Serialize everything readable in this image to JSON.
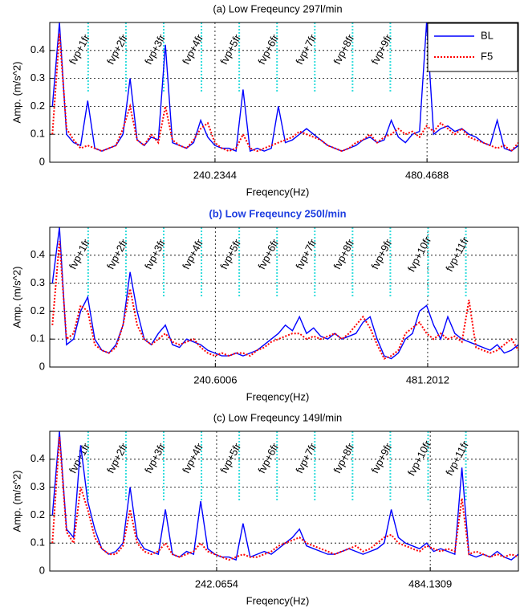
{
  "chart_data": [
    {
      "type": "line",
      "title": "(a) Low Freqeuncy 297l/min",
      "title_color": "#000000",
      "title_bold": false,
      "xlabel": "Freqency(Hz)",
      "ylabel": "Amp. (m/s^2)",
      "xlim": [
        53,
        584
      ],
      "ylim": [
        0,
        0.5
      ],
      "xticks": [
        240.2344,
        480.4688
      ],
      "yticks": [
        0,
        0.1,
        0.2,
        0.3,
        0.4
      ],
      "grid": true,
      "legend": "upper right",
      "annotation_color": "#33dddd",
      "annotations": [
        {
          "text": "fvp+1fr",
          "x": 96.5
        },
        {
          "text": "fvp+2fr",
          "x": 139.3
        },
        {
          "text": "fvp+3fr",
          "x": 182.1
        },
        {
          "text": "fvp+4fr",
          "x": 224.9
        },
        {
          "text": "fvp+5fr",
          "x": 267.7
        },
        {
          "text": "fvp+6fr",
          "x": 310.5
        },
        {
          "text": "fvp+7fr",
          "x": 353.3
        },
        {
          "text": "fvp+8fr",
          "x": 396.1
        },
        {
          "text": "fvp+9fr",
          "x": 438.9
        }
      ],
      "x": [
        56,
        64,
        72,
        80,
        88,
        96,
        104,
        112,
        120,
        128,
        136,
        144,
        152,
        160,
        168,
        176,
        184,
        192,
        200,
        208,
        216,
        224,
        232,
        240,
        248,
        256,
        264,
        272,
        280,
        288,
        296,
        304,
        312,
        320,
        328,
        336,
        344,
        352,
        360,
        368,
        376,
        384,
        392,
        400,
        408,
        416,
        424,
        432,
        440,
        448,
        456,
        464,
        472,
        480,
        488,
        496,
        504,
        512,
        520,
        528,
        536,
        544,
        552,
        560,
        568,
        576,
        584
      ],
      "series": [
        {
          "name": "BL",
          "color": "#0000ff",
          "dash": "solid",
          "values": [
            0.2,
            0.5,
            0.1,
            0.07,
            0.06,
            0.22,
            0.05,
            0.04,
            0.05,
            0.06,
            0.1,
            0.3,
            0.08,
            0.06,
            0.09,
            0.08,
            0.42,
            0.07,
            0.06,
            0.05,
            0.07,
            0.15,
            0.09,
            0.06,
            0.05,
            0.05,
            0.04,
            0.26,
            0.04,
            0.05,
            0.04,
            0.05,
            0.2,
            0.07,
            0.08,
            0.1,
            0.12,
            0.1,
            0.08,
            0.06,
            0.05,
            0.04,
            0.05,
            0.06,
            0.08,
            0.09,
            0.07,
            0.08,
            0.15,
            0.09,
            0.07,
            0.1,
            0.11,
            0.5,
            0.1,
            0.12,
            0.13,
            0.11,
            0.12,
            0.1,
            0.09,
            0.07,
            0.06,
            0.15,
            0.05,
            0.04,
            0.06
          ]
        },
        {
          "name": "F5",
          "color": "#ff0000",
          "dash": "dotted",
          "values": [
            0.1,
            0.46,
            0.12,
            0.08,
            0.05,
            0.06,
            0.05,
            0.04,
            0.05,
            0.06,
            0.12,
            0.2,
            0.08,
            0.06,
            0.1,
            0.07,
            0.2,
            0.08,
            0.06,
            0.05,
            0.08,
            0.12,
            0.14,
            0.07,
            0.05,
            0.04,
            0.05,
            0.1,
            0.05,
            0.04,
            0.05,
            0.06,
            0.07,
            0.08,
            0.09,
            0.11,
            0.1,
            0.09,
            0.08,
            0.06,
            0.05,
            0.04,
            0.05,
            0.07,
            0.08,
            0.1,
            0.07,
            0.09,
            0.1,
            0.12,
            0.1,
            0.11,
            0.09,
            0.13,
            0.11,
            0.14,
            0.12,
            0.1,
            0.12,
            0.09,
            0.08,
            0.07,
            0.06,
            0.05,
            0.06,
            0.04,
            0.07
          ]
        }
      ]
    },
    {
      "type": "line",
      "title": "(b) Low Freqeuncy 250l/min",
      "title_color": "#1f3fe0",
      "title_bold": true,
      "xlabel": "Freqency(Hz)",
      "ylabel": "Amp. (m/s^2)",
      "xlim": [
        53,
        584
      ],
      "ylim": [
        0,
        0.5
      ],
      "xticks": [
        240.6006,
        481.2012
      ],
      "yticks": [
        0,
        0.1,
        0.2,
        0.3,
        0.4
      ],
      "grid": true,
      "annotation_color": "#33dddd",
      "annotations": [
        {
          "text": "fvp+1fr",
          "x": 96.5
        },
        {
          "text": "fvp+2fr",
          "x": 139.3
        },
        {
          "text": "fvp+3fr",
          "x": 182.1
        },
        {
          "text": "fvp+4fr",
          "x": 224.9
        },
        {
          "text": "fvp+5fr",
          "x": 267.7
        },
        {
          "text": "fvp+6fr",
          "x": 310.5
        },
        {
          "text": "fvp+7fr",
          "x": 353.3
        },
        {
          "text": "fvp+8fr",
          "x": 396.1
        },
        {
          "text": "fvp+9fr",
          "x": 438.9
        },
        {
          "text": "fvp+10fr",
          "x": 481.7
        },
        {
          "text": "fvp+11fr",
          "x": 524.5
        }
      ],
      "x": [
        56,
        64,
        72,
        80,
        88,
        96,
        104,
        112,
        120,
        128,
        136,
        144,
        152,
        160,
        168,
        176,
        184,
        192,
        200,
        208,
        216,
        224,
        232,
        240,
        248,
        256,
        264,
        272,
        280,
        288,
        296,
        304,
        312,
        320,
        328,
        336,
        344,
        352,
        360,
        368,
        376,
        384,
        392,
        400,
        408,
        416,
        424,
        432,
        440,
        448,
        456,
        464,
        472,
        480,
        488,
        496,
        504,
        512,
        520,
        528,
        536,
        544,
        552,
        560,
        568,
        576,
        584
      ],
      "series": [
        {
          "color": "#0000ff",
          "dash": "solid",
          "values": [
            0.3,
            0.5,
            0.08,
            0.1,
            0.2,
            0.25,
            0.1,
            0.06,
            0.05,
            0.08,
            0.15,
            0.34,
            0.2,
            0.1,
            0.08,
            0.12,
            0.15,
            0.08,
            0.07,
            0.1,
            0.09,
            0.08,
            0.06,
            0.05,
            0.04,
            0.04,
            0.05,
            0.04,
            0.05,
            0.06,
            0.08,
            0.1,
            0.12,
            0.15,
            0.13,
            0.18,
            0.12,
            0.14,
            0.11,
            0.1,
            0.12,
            0.1,
            0.11,
            0.12,
            0.16,
            0.18,
            0.1,
            0.04,
            0.03,
            0.05,
            0.1,
            0.12,
            0.2,
            0.22,
            0.15,
            0.1,
            0.18,
            0.12,
            0.1,
            0.09,
            0.08,
            0.07,
            0.06,
            0.08,
            0.05,
            0.06,
            0.08
          ]
        },
        {
          "color": "#ff0000",
          "dash": "dotted",
          "values": [
            0.15,
            0.45,
            0.1,
            0.12,
            0.22,
            0.2,
            0.08,
            0.06,
            0.05,
            0.07,
            0.15,
            0.28,
            0.15,
            0.1,
            0.08,
            0.1,
            0.12,
            0.09,
            0.08,
            0.09,
            0.1,
            0.07,
            0.05,
            0.04,
            0.05,
            0.04,
            0.05,
            0.05,
            0.04,
            0.06,
            0.07,
            0.09,
            0.1,
            0.11,
            0.12,
            0.12,
            0.1,
            0.11,
            0.1,
            0.11,
            0.12,
            0.1,
            0.12,
            0.15,
            0.18,
            0.14,
            0.08,
            0.03,
            0.04,
            0.06,
            0.12,
            0.14,
            0.16,
            0.12,
            0.1,
            0.12,
            0.1,
            0.11,
            0.09,
            0.24,
            0.07,
            0.06,
            0.05,
            0.06,
            0.08,
            0.1,
            0.06
          ]
        }
      ]
    },
    {
      "type": "line",
      "title": "(c) Low Freqeuncy 149l/min",
      "title_color": "#000000",
      "title_bold": false,
      "xlabel": "Freqency(Hz)",
      "ylabel": "Amp. (m/s^2)",
      "xlim": [
        53,
        584
      ],
      "ylim": [
        0,
        0.5
      ],
      "xticks": [
        242.0654,
        484.1309
      ],
      "yticks": [
        0,
        0.1,
        0.2,
        0.3,
        0.4
      ],
      "grid": true,
      "annotation_color": "#33dddd",
      "annotations": [
        {
          "text": "fvp+1fr",
          "x": 96.5
        },
        {
          "text": "fvp+2fr",
          "x": 139.3
        },
        {
          "text": "fvp+3fr",
          "x": 182.1
        },
        {
          "text": "fvp+4fr",
          "x": 224.9
        },
        {
          "text": "fvp+5fr",
          "x": 267.7
        },
        {
          "text": "fvp+6fr",
          "x": 310.5
        },
        {
          "text": "fvp+7fr",
          "x": 353.3
        },
        {
          "text": "fvp+8fr",
          "x": 396.1
        },
        {
          "text": "fvp+9fr",
          "x": 438.9
        },
        {
          "text": "fvp+10fr",
          "x": 481.7
        },
        {
          "text": "fvp+11fr",
          "x": 524.5
        }
      ],
      "x": [
        56,
        64,
        72,
        80,
        88,
        96,
        104,
        112,
        120,
        128,
        136,
        144,
        152,
        160,
        168,
        176,
        184,
        192,
        200,
        208,
        216,
        224,
        232,
        240,
        248,
        256,
        264,
        272,
        280,
        288,
        296,
        304,
        312,
        320,
        328,
        336,
        344,
        352,
        360,
        368,
        376,
        384,
        392,
        400,
        408,
        416,
        424,
        432,
        440,
        448,
        456,
        464,
        472,
        480,
        488,
        496,
        504,
        512,
        520,
        528,
        536,
        544,
        552,
        560,
        568,
        576,
        584
      ],
      "series": [
        {
          "color": "#0000ff",
          "dash": "solid",
          "values": [
            0.2,
            0.5,
            0.15,
            0.12,
            0.45,
            0.25,
            0.15,
            0.08,
            0.06,
            0.07,
            0.1,
            0.3,
            0.12,
            0.08,
            0.07,
            0.06,
            0.22,
            0.06,
            0.05,
            0.07,
            0.06,
            0.25,
            0.08,
            0.06,
            0.05,
            0.05,
            0.04,
            0.17,
            0.05,
            0.06,
            0.07,
            0.06,
            0.08,
            0.1,
            0.12,
            0.15,
            0.09,
            0.08,
            0.07,
            0.06,
            0.06,
            0.07,
            0.08,
            0.07,
            0.06,
            0.07,
            0.08,
            0.1,
            0.22,
            0.12,
            0.1,
            0.09,
            0.08,
            0.1,
            0.07,
            0.08,
            0.07,
            0.06,
            0.37,
            0.06,
            0.05,
            0.06,
            0.05,
            0.07,
            0.05,
            0.04,
            0.06
          ]
        },
        {
          "color": "#ff0000",
          "dash": "dotted",
          "values": [
            0.1,
            0.48,
            0.14,
            0.1,
            0.3,
            0.22,
            0.12,
            0.08,
            0.06,
            0.06,
            0.09,
            0.22,
            0.1,
            0.07,
            0.06,
            0.07,
            0.1,
            0.06,
            0.05,
            0.06,
            0.07,
            0.1,
            0.07,
            0.06,
            0.05,
            0.04,
            0.05,
            0.06,
            0.05,
            0.05,
            0.06,
            0.07,
            0.09,
            0.1,
            0.11,
            0.12,
            0.1,
            0.09,
            0.08,
            0.07,
            0.06,
            0.07,
            0.08,
            0.09,
            0.07,
            0.08,
            0.1,
            0.12,
            0.13,
            0.1,
            0.09,
            0.08,
            0.07,
            0.09,
            0.08,
            0.07,
            0.08,
            0.07,
            0.26,
            0.06,
            0.07,
            0.06,
            0.05,
            0.06,
            0.05,
            0.06,
            0.05
          ]
        }
      ]
    }
  ]
}
